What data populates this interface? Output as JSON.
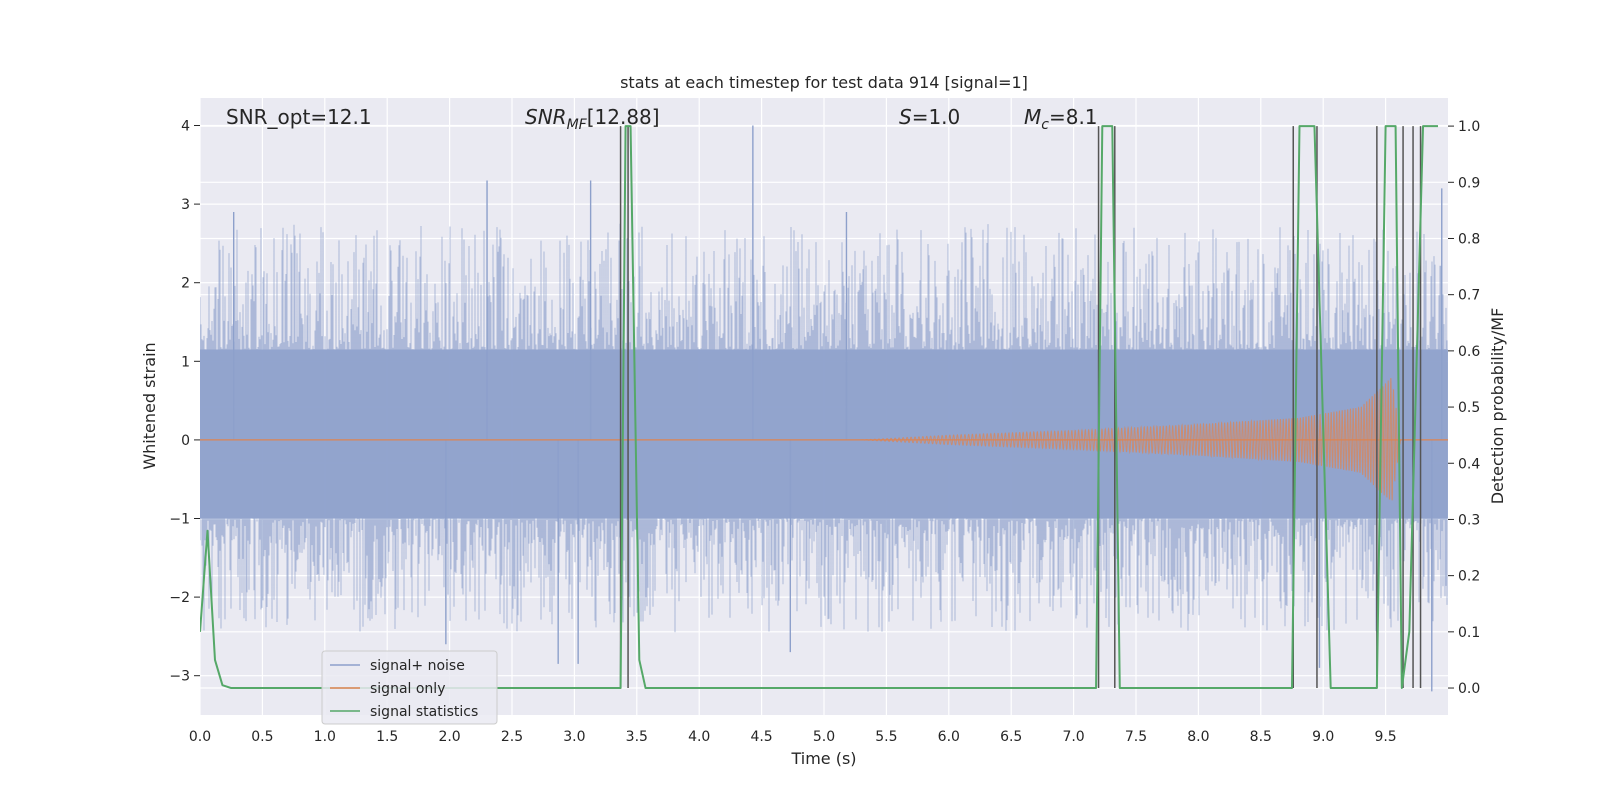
{
  "chart_data": {
    "type": "line",
    "title": "stats at each timestep for test data 914 [signal=1]",
    "xlabel": "Time (s)",
    "ylabel": "Whitened strain",
    "ylabel_right": "Detection probability/MF",
    "xlim": [
      0.0,
      10.0
    ],
    "ylim": [
      -3.5,
      4.35
    ],
    "ylim_right": [
      -0.048,
      1.05
    ],
    "x_ticks": [
      "0.0",
      "0.5",
      "1.0",
      "1.5",
      "2.0",
      "2.5",
      "3.0",
      "3.5",
      "4.0",
      "4.5",
      "5.0",
      "5.5",
      "6.0",
      "6.5",
      "7.0",
      "7.5",
      "8.0",
      "8.5",
      "9.0",
      "9.5"
    ],
    "y_ticks": [
      "4",
      "3",
      "2",
      "1",
      "0",
      "−1",
      "−2",
      "−3"
    ],
    "y_ticks_right": [
      "1.0",
      "0.9",
      "0.8",
      "0.7",
      "0.6",
      "0.5",
      "0.4",
      "0.3",
      "0.2",
      "0.1",
      "0.0"
    ],
    "grid": true,
    "legend_position": "lower-left",
    "annotations": {
      "snr_opt": "SNR_opt=12.1",
      "snr_mf": "[12.88]",
      "s_value": "=1.0",
      "mc_value": "=8.1"
    },
    "series": [
      {
        "name": "signal+ noise",
        "color": "#8da0cb",
        "axis": "left",
        "noise_band": [
          -1.0,
          1.15
        ],
        "peaks": [
          {
            "x": 0.27,
            "y": 2.9
          },
          {
            "x": 2.3,
            "y": 3.3
          },
          {
            "x": 3.13,
            "y": 3.3
          },
          {
            "x": 4.43,
            "y": 4.0
          },
          {
            "x": 5.18,
            "y": 2.9
          },
          {
            "x": 9.95,
            "y": 3.2
          },
          {
            "x": 2.87,
            "y": -2.85
          },
          {
            "x": 3.03,
            "y": -2.85
          },
          {
            "x": 1.97,
            "y": -2.6
          },
          {
            "x": 4.73,
            "y": -2.7
          },
          {
            "x": 8.97,
            "y": -2.9
          },
          {
            "x": 9.87,
            "y": -3.2
          }
        ]
      },
      {
        "name": "signal only",
        "color": "#dd8452",
        "axis": "left",
        "chirp_envelope": [
          {
            "x": 5.3,
            "a": 0.0
          },
          {
            "x": 6.0,
            "a": 0.06
          },
          {
            "x": 7.0,
            "a": 0.12
          },
          {
            "x": 8.0,
            "a": 0.2
          },
          {
            "x": 8.8,
            "a": 0.28
          },
          {
            "x": 9.3,
            "a": 0.42
          },
          {
            "x": 9.55,
            "a": 0.8
          },
          {
            "x": 9.62,
            "a": 0.0
          }
        ]
      },
      {
        "name": "signal statistics",
        "color": "#55a868",
        "axis": "right",
        "points": [
          {
            "x": 0.0,
            "y": 0.1
          },
          {
            "x": 0.06,
            "y": 0.28
          },
          {
            "x": 0.12,
            "y": 0.05
          },
          {
            "x": 0.18,
            "y": 0.005
          },
          {
            "x": 0.25,
            "y": 0.0
          },
          {
            "x": 3.37,
            "y": 0.0
          },
          {
            "x": 3.41,
            "y": 1.0
          },
          {
            "x": 3.45,
            "y": 1.0
          },
          {
            "x": 3.52,
            "y": 0.05
          },
          {
            "x": 3.57,
            "y": 0.0
          },
          {
            "x": 7.18,
            "y": 0.0
          },
          {
            "x": 7.23,
            "y": 1.0
          },
          {
            "x": 7.31,
            "y": 1.0
          },
          {
            "x": 7.37,
            "y": 0.0
          },
          {
            "x": 8.75,
            "y": 0.0
          },
          {
            "x": 8.81,
            "y": 1.0
          },
          {
            "x": 8.93,
            "y": 1.0
          },
          {
            "x": 9.06,
            "y": 0.0
          },
          {
            "x": 9.43,
            "y": 0.0
          },
          {
            "x": 9.5,
            "y": 1.0
          },
          {
            "x": 9.58,
            "y": 1.0
          },
          {
            "x": 9.63,
            "y": 0.0
          },
          {
            "x": 9.69,
            "y": 0.1
          },
          {
            "x": 9.8,
            "y": 1.0
          },
          {
            "x": 9.92,
            "y": 1.0
          }
        ]
      }
    ],
    "mf_markers": {
      "color": "#555555",
      "x": [
        3.37,
        3.43,
        7.2,
        7.33,
        8.76,
        8.95,
        9.43,
        9.64,
        9.72,
        9.78
      ]
    }
  }
}
